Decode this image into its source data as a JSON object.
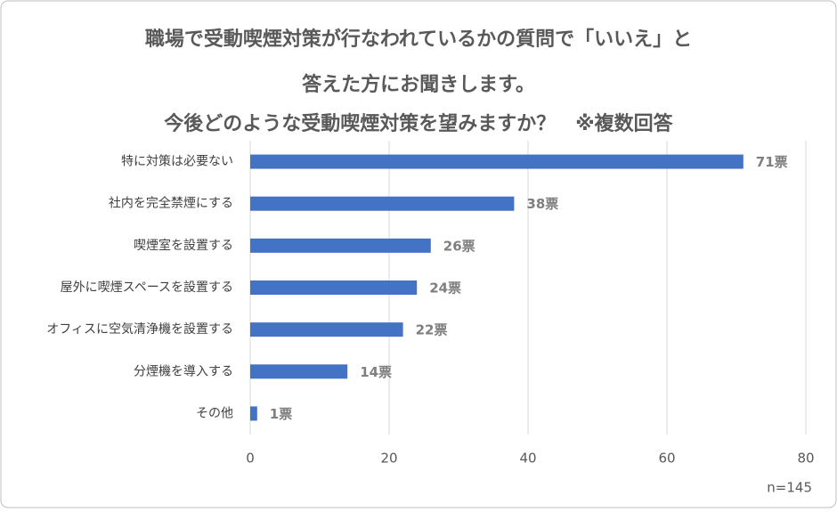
{
  "chart_data": {
    "type": "hbar",
    "title": [
      "職場で受動喫煙対策が行なわれているかの質問で「いいえ」と",
      "答えた方にお聞きします。",
      "今後どのような受動喫煙対策を望みますか？　※複数回答"
    ],
    "categories": [
      "特に対策は必要ない",
      "社内を完全禁煙にする",
      "喫煙室を設置する",
      "屋外に喫煙スペースを設置する",
      "オフィスに空気清浄機を設置する",
      "分煙機を導入する",
      "その他"
    ],
    "values": [
      71,
      38,
      26,
      24,
      22,
      14,
      1
    ],
    "value_labels": [
      "71票",
      "38票",
      "26票",
      "24票",
      "22票",
      "14票",
      "1票"
    ],
    "color": "#4472c4",
    "xlim": [
      0,
      80
    ],
    "xticks": [
      0,
      20,
      40,
      60,
      80
    ],
    "grid": true,
    "annotation": "n=145"
  }
}
